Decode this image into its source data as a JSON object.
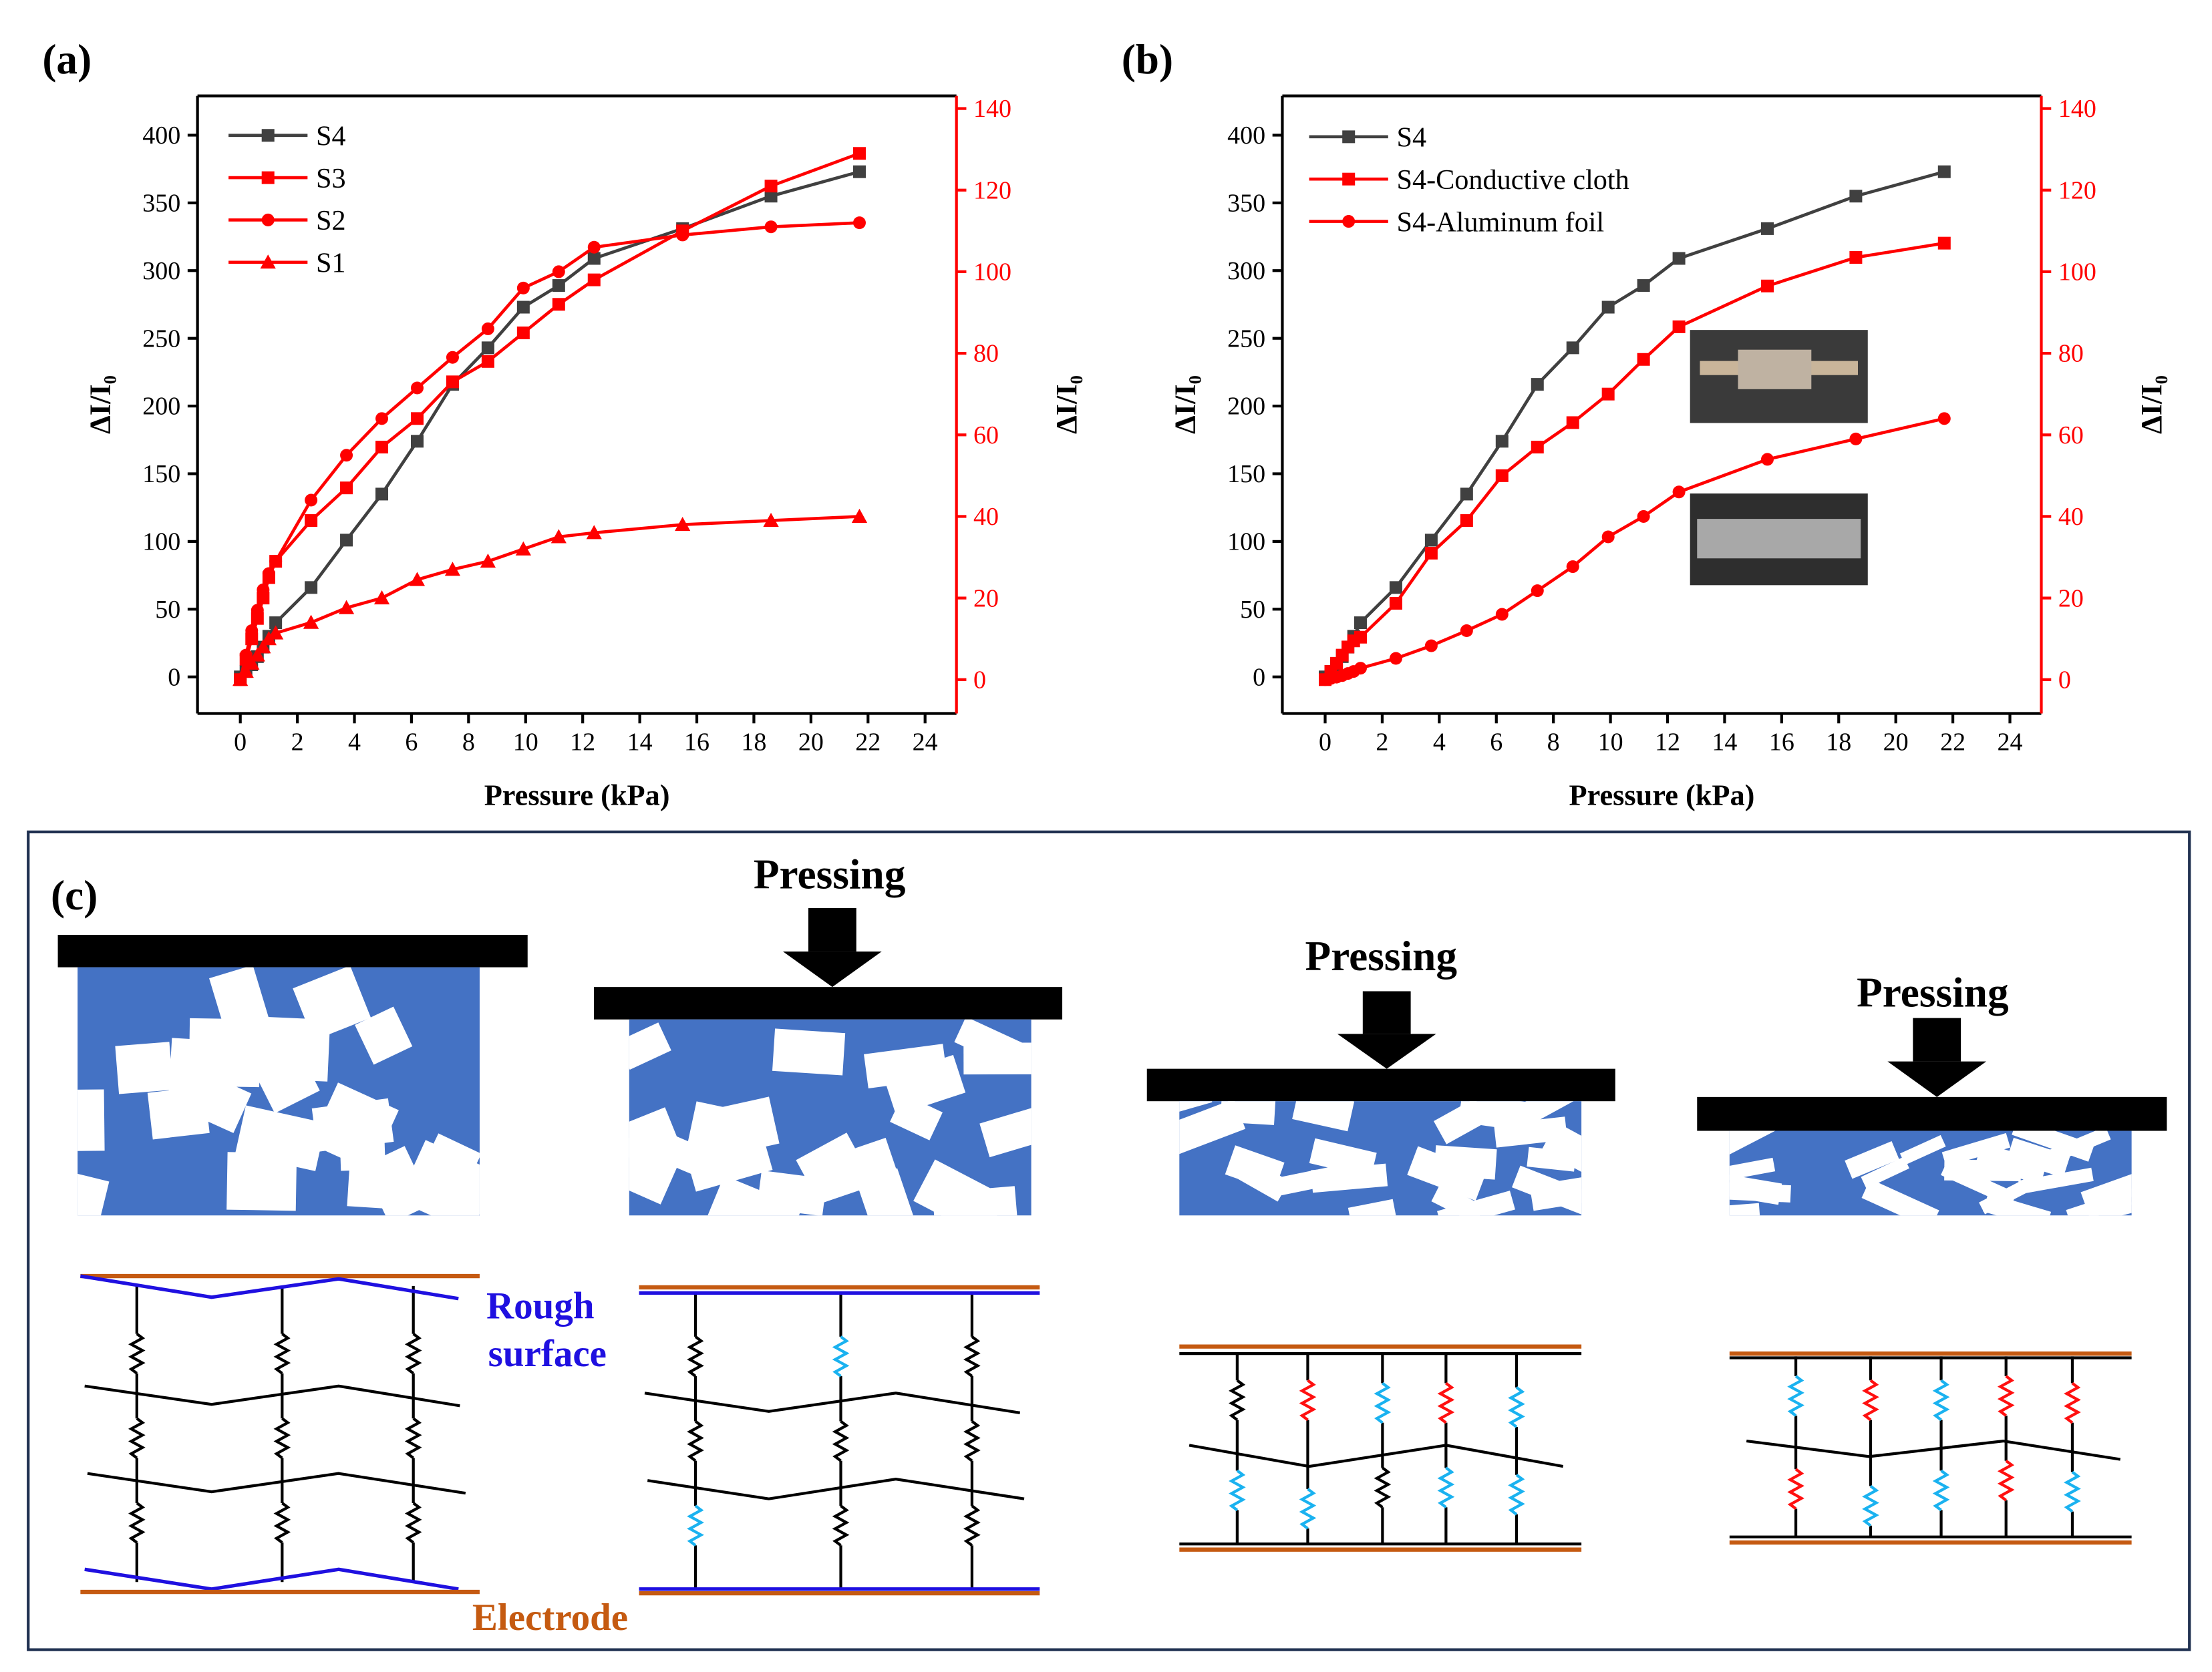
{
  "chart_data": [
    {
      "type": "line",
      "panel_label": "(a)",
      "x_label": "Pressure (kPa)",
      "y_label": "ΔI/I₀",
      "y2_label": "ΔI/I₀",
      "x": [
        0,
        0.2,
        0.4,
        0.6,
        0.8,
        1.0,
        1.24,
        2.48,
        3.72,
        4.96,
        6.2,
        7.44,
        8.68,
        9.92,
        11.16,
        12.4,
        15.5,
        18.6,
        21.7
      ],
      "xlim": [
        -1.5,
        25.1
      ],
      "xticks": [
        0,
        2,
        4,
        6,
        8,
        10,
        12,
        14,
        16,
        18,
        20,
        22,
        24
      ],
      "ylim": [
        -27,
        429
      ],
      "yticks": [
        0,
        50,
        100,
        150,
        200,
        250,
        300,
        350,
        400
      ],
      "y2lim": [
        -8.3,
        143.1
      ],
      "y2ticks": [
        0,
        20,
        40,
        60,
        80,
        100,
        120,
        140
      ],
      "legend": "upper left",
      "axis2_color": "#ff0000",
      "series": [
        {
          "name": "S4",
          "color": "#404040",
          "marker": "square",
          "values": [
            0,
            4,
            9,
            15,
            22,
            30,
            40,
            66,
            101,
            135,
            174,
            216,
            243,
            273,
            289,
            309,
            331,
            355,
            373
          ]
        },
        {
          "name": "S3",
          "color": "#ff0000",
          "marker": "square",
          "axis": "y2",
          "values": [
            0,
            5,
            10,
            15,
            20,
            25,
            29,
            39,
            47,
            57,
            64,
            73,
            78,
            85,
            92,
            98,
            110,
            121,
            129
          ]
        },
        {
          "name": "S2",
          "color": "#ff0000",
          "marker": "circle",
          "axis": "y2",
          "values": [
            0,
            6,
            12,
            17,
            22,
            26,
            29,
            44,
            55,
            64,
            71.5,
            79,
            86,
            96,
            100,
            106,
            109,
            111,
            112
          ]
        },
        {
          "name": "S1",
          "color": "#ff0000",
          "marker": "triangle",
          "axis": "y2",
          "values": [
            0,
            2,
            4,
            6,
            8,
            10,
            11.4,
            14,
            17.6,
            20,
            24.5,
            27,
            29,
            32,
            35,
            36,
            38,
            39,
            40
          ]
        }
      ]
    },
    {
      "type": "line",
      "panel_label": "(b)",
      "x_label": "Pressure (kPa)",
      "y_label": "ΔI/I₀",
      "y2_label": "ΔI/I₀",
      "x": [
        0,
        0.2,
        0.4,
        0.6,
        0.8,
        1.0,
        1.24,
        2.48,
        3.72,
        4.96,
        6.2,
        7.44,
        8.68,
        9.92,
        11.16,
        12.4,
        15.5,
        18.6,
        21.7
      ],
      "xlim": [
        -1.5,
        25.1
      ],
      "xticks": [
        0,
        2,
        4,
        6,
        8,
        10,
        12,
        14,
        16,
        18,
        20,
        22,
        24
      ],
      "ylim": [
        -27,
        429
      ],
      "yticks": [
        0,
        50,
        100,
        150,
        200,
        250,
        300,
        350,
        400
      ],
      "y2lim": [
        -8.3,
        143.1
      ],
      "y2ticks": [
        0,
        20,
        40,
        60,
        80,
        100,
        120,
        140
      ],
      "legend": "upper left",
      "axis2_color": "#ff0000",
      "series": [
        {
          "name": "S4",
          "color": "#404040",
          "marker": "square",
          "values": [
            0,
            4,
            9,
            15,
            22,
            30,
            40,
            66,
            101,
            135,
            174,
            216,
            243,
            273,
            289,
            309,
            331,
            355,
            373
          ]
        },
        {
          "name": "S4-Conductive cloth",
          "color": "#ff0000",
          "marker": "square",
          "axis": "y2",
          "values": [
            0,
            2,
            4,
            6,
            8,
            9.5,
            10.4,
            18.7,
            31,
            39,
            50,
            57,
            63,
            70,
            78.5,
            86.5,
            96.5,
            103.5,
            107
          ]
        },
        {
          "name": "S4-Aluminum foil",
          "color": "#ff0000",
          "marker": "circle",
          "axis": "y2",
          "values": [
            0,
            0.3,
            0.6,
            1,
            1.5,
            2,
            2.8,
            5.2,
            8.3,
            12,
            16,
            21.8,
            27.7,
            35,
            40,
            46,
            54,
            59,
            64
          ]
        }
      ]
    }
  ],
  "diagram": {
    "panel_label": "(c)",
    "pressing": [
      "Pressing",
      "Pressing",
      "Pressing"
    ],
    "rough_surface": [
      "Rough",
      "surface"
    ],
    "electrode": "Electrode"
  }
}
